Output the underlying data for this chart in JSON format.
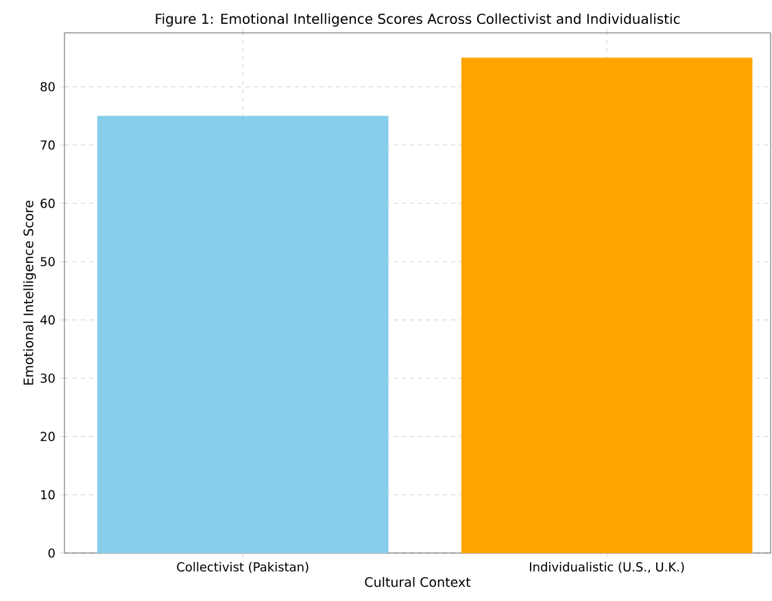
{
  "chart_data": {
    "type": "bar",
    "title": "Figure 1: Emotional Intelligence Scores Across Collectivist and Individualistic",
    "xlabel": "Cultural Context",
    "ylabel": "Emotional Intelligence Score",
    "categories": [
      "Collectivist (Pakistan)",
      "Individualistic (U.S., U.K.)"
    ],
    "values": [
      75,
      85
    ],
    "colors": [
      "#87ceeb",
      "#ffa500"
    ],
    "ylim": [
      0,
      89.25
    ],
    "yticks": [
      0,
      10,
      20,
      30,
      40,
      50,
      60,
      70,
      80
    ],
    "grid": true
  }
}
